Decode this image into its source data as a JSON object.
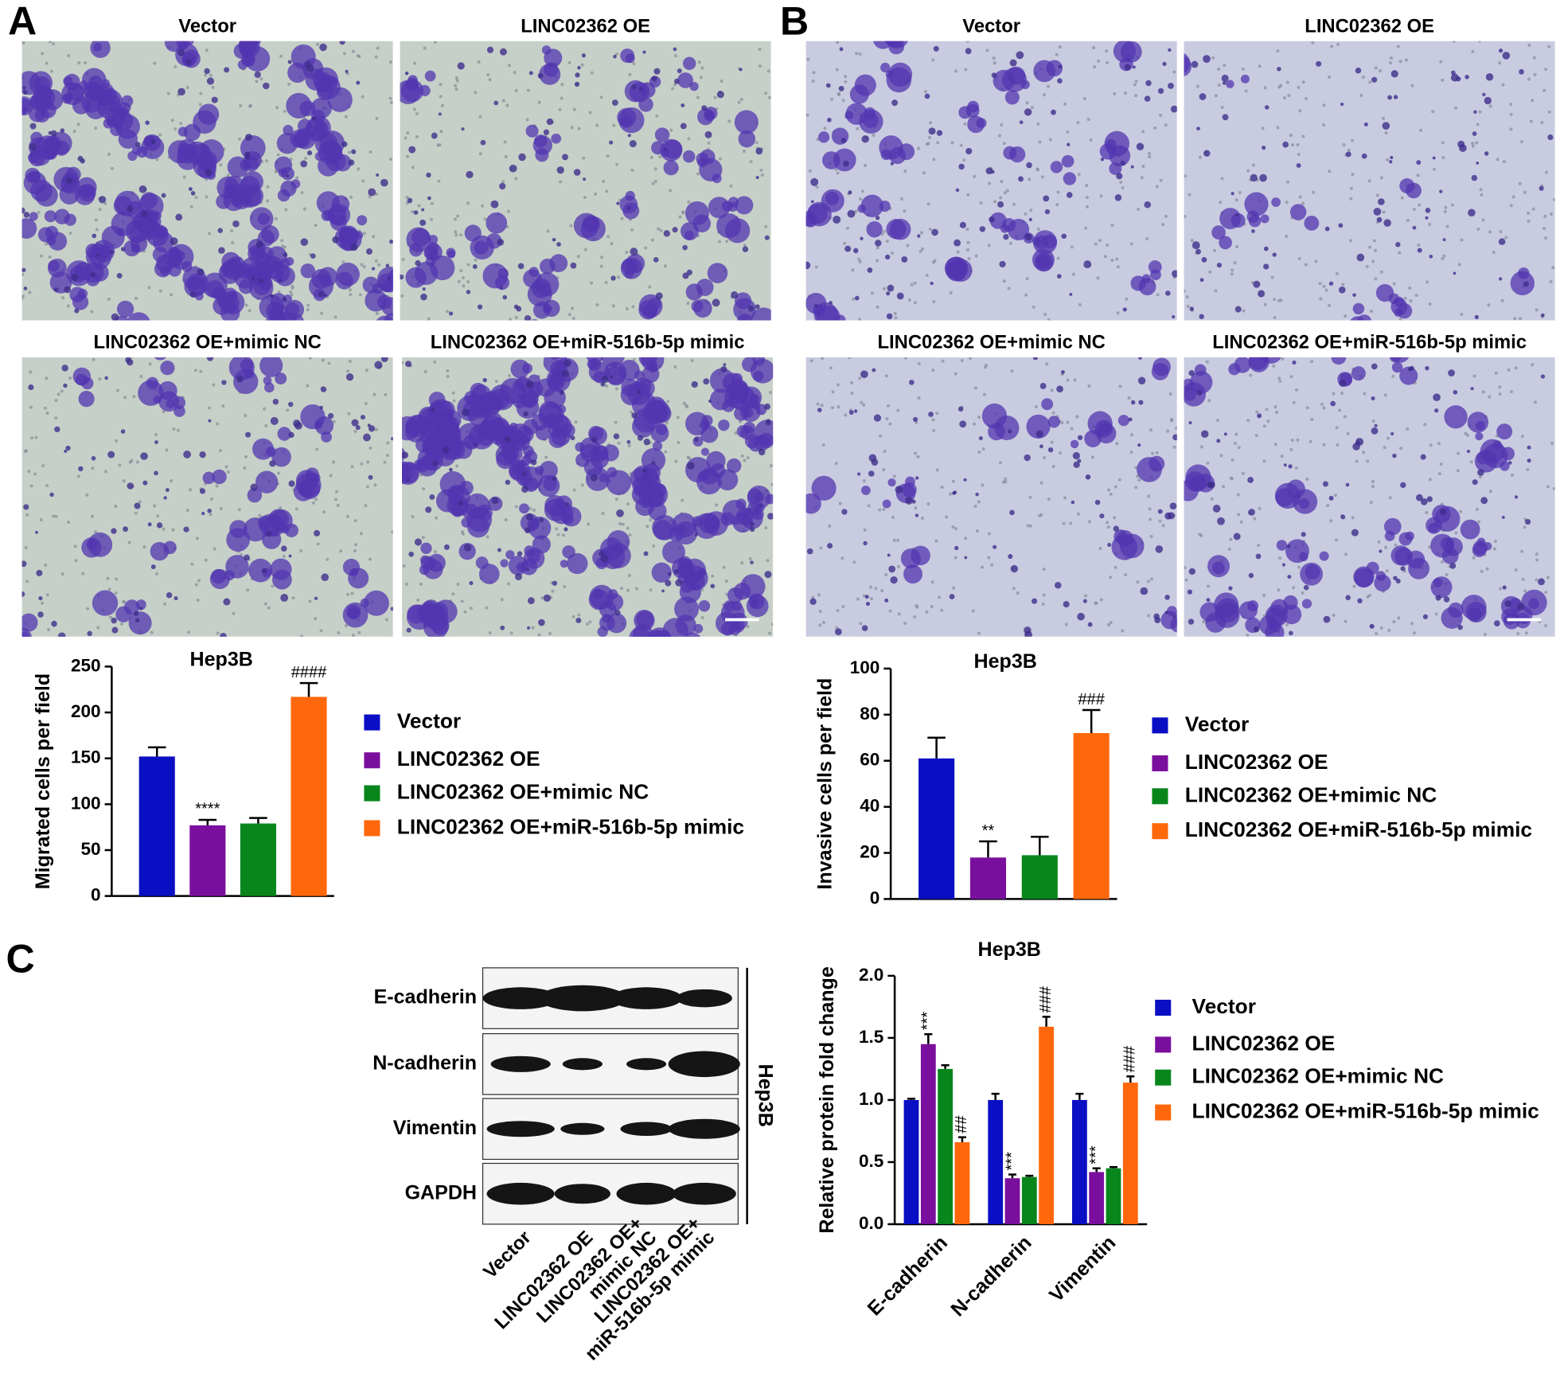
{
  "figure": {
    "panels": [
      {
        "label": "A",
        "images": [
          "Vector",
          "LINC02362 OE",
          "LINC02362 OE+mimic NC",
          "LINC02362 OE+miR-516b-5p mimic"
        ]
      },
      {
        "label": "B",
        "images": [
          "Vector",
          "LINC02362 OE",
          "LINC02362 OE+mimic NC",
          "LINC02362 OE+miR-516b-5p mimic"
        ]
      },
      {
        "label": "C"
      }
    ],
    "western_blot": {
      "proteins": [
        "E-cadherin",
        "N-cadherin",
        "Vimentin",
        "GAPDH"
      ],
      "lanes": [
        [
          "Vector"
        ],
        [
          "LINC02362 OE"
        ],
        [
          "LINC02362 OE+",
          "mimic NC"
        ],
        [
          "LINC02362 OE+",
          "miR-516b-5p mimic"
        ]
      ],
      "cell_line": "Hep3B"
    }
  },
  "chart_data": [
    {
      "type": "bar",
      "title": "Hep3B",
      "ylabel": "Migrated cells per field",
      "categories": [
        "Vector",
        "LINC02362 OE",
        "LINC02362 OE+mimic NC",
        "LINC02362 OE+miR-516b-5p mimic"
      ],
      "values": [
        152,
        77,
        79,
        217
      ],
      "errors": [
        10,
        6,
        6,
        15
      ],
      "annotations": [
        null,
        "****",
        null,
        "####"
      ],
      "colors": [
        "#0a0fc4",
        "#7a0f9e",
        "#08861c",
        "#ff670a"
      ],
      "ylim": [
        0,
        250
      ],
      "yticks": [
        0,
        50,
        100,
        150,
        200,
        250
      ],
      "legend": "right"
    },
    {
      "type": "bar",
      "title": "Hep3B",
      "ylabel": "Invasive cells per field",
      "categories": [
        "Vector",
        "LINC02362 OE",
        "LINC02362 OE+mimic NC",
        "LINC02362 OE+miR-516b-5p mimic"
      ],
      "values": [
        61,
        18,
        19,
        72
      ],
      "errors": [
        9,
        7,
        8,
        10
      ],
      "annotations": [
        null,
        "**",
        null,
        "###"
      ],
      "colors": [
        "#0a0fc4",
        "#7a0f9e",
        "#08861c",
        "#ff670a"
      ],
      "ylim": [
        0,
        100
      ],
      "yticks": [
        0,
        20,
        40,
        60,
        80,
        100
      ],
      "legend": "right"
    },
    {
      "type": "grouped_bar",
      "title": "Hep3B",
      "ylabel": "Relative protein fold change",
      "categories": [
        "E-cadherin",
        "N-cadherin",
        "Vimentin"
      ],
      "series": [
        {
          "name": "Vector",
          "color": "#0a0fc4",
          "values": [
            1.0,
            1.0,
            1.0
          ],
          "errors": [
            0.01,
            0.05,
            0.05
          ],
          "annotations": [
            null,
            null,
            null
          ]
        },
        {
          "name": "LINC02362 OE",
          "color": "#7a0f9e",
          "values": [
            1.45,
            0.37,
            0.42
          ],
          "errors": [
            0.08,
            0.03,
            0.03
          ],
          "annotations": [
            "***",
            "***",
            "***"
          ]
        },
        {
          "name": "LINC02362 OE+mimic NC",
          "color": "#08861c",
          "values": [
            1.25,
            0.38,
            0.45
          ],
          "errors": [
            0.03,
            0.01,
            0.01
          ],
          "annotations": [
            null,
            null,
            null
          ]
        },
        {
          "name": "LINC02362 OE+miR-516b-5p mimic",
          "color": "#ff670a",
          "values": [
            0.66,
            1.59,
            1.14
          ],
          "errors": [
            0.04,
            0.08,
            0.05
          ],
          "annotations": [
            "##",
            "###",
            "###"
          ]
        }
      ],
      "ylim": [
        0,
        2.0
      ],
      "yticks": [
        {
          "value": 0,
          "label": "0.0"
        },
        {
          "value": 0.5,
          "label": "0.5"
        },
        {
          "value": 1.0,
          "label": "1.0"
        },
        {
          "value": 1.5,
          "label": "1.5"
        },
        {
          "value": 2.0,
          "label": "2.0"
        }
      ],
      "legend": "right"
    }
  ]
}
